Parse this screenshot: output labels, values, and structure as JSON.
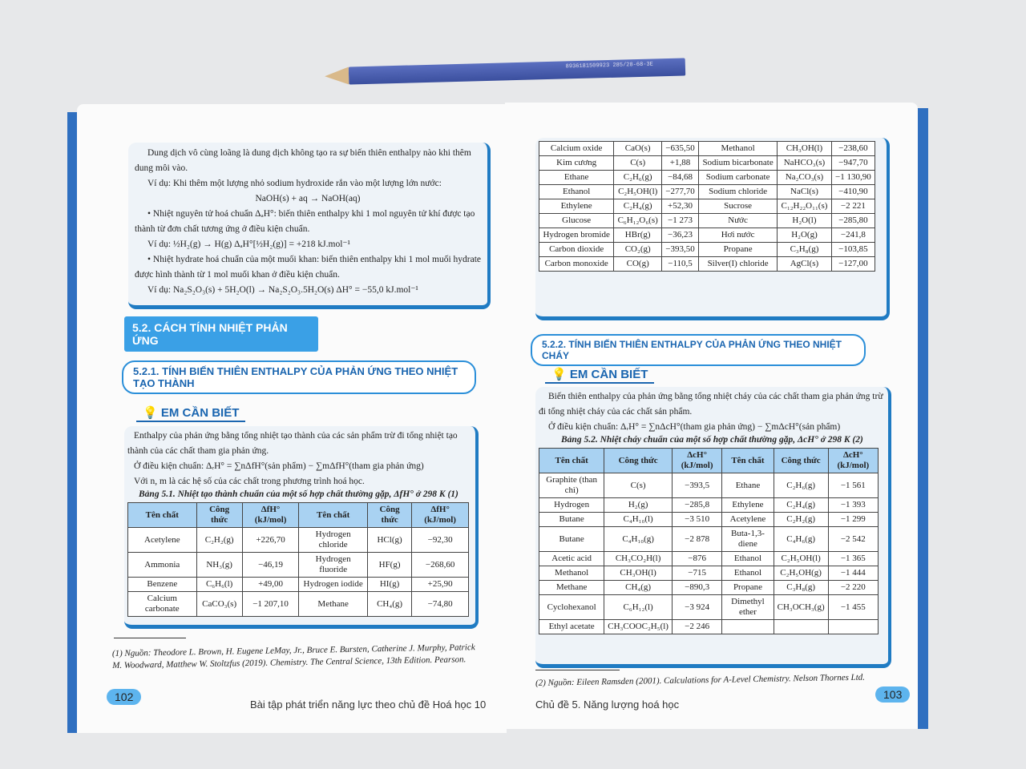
{
  "left": {
    "intro": [
      "Dung dịch vô cùng loãng là dung dịch không tạo ra sự biến thiên enthalpy nào khi thêm dung môi vào.",
      "Ví dụ: Khi thêm một lượng nhỏ sodium hydroxide rắn vào một lượng lớn nước:",
      "NaOH(s) + aq → NaOH(aq)",
      "• Nhiệt nguyên tử hoá chuẩn ΔₐH°: biến thiên enthalpy khi 1 mol nguyên tử khí được tạo thành từ đơn chất tương ứng ở điều kiện chuẩn.",
      "Ví dụ: ½H₂(g) → H(g)          ΔₐH°[½H₂(g)] = +218 kJ.mol⁻¹",
      "• Nhiệt hydrate hoá chuẩn của một muối khan: biến thiên enthalpy khi 1 mol muối hydrate được hình thành từ 1 mol muối khan ở điều kiện chuẩn.",
      "Ví dụ: Na₂S₂O₃(s) + 5H₂O(l) → Na₂S₂O₃.5H₂O(s)        ΔH° = −55,0 kJ.mol⁻¹"
    ],
    "section": "5.2. CÁCH TÍNH NHIỆT PHẢN ỨNG",
    "subsection": "5.2.1. TÍNH BIẾN THIÊN ENTHALPY CỦA PHẢN ỨNG THEO NHIỆT TẠO THÀNH",
    "em_can_biet": "EM CẦN BIẾT",
    "para": [
      "Enthalpy của phản ứng bằng tổng nhiệt tạo thành của các sản phẩm trừ đi tổng nhiệt tạo thành của các chất tham gia phản ứng.",
      "Ở điều kiện chuẩn: ΔᵣH° = ∑nΔfH°(sản phẩm) − ∑mΔfH°(tham gia phản ứng)",
      "Với n, m là các hệ số của các chất trong phương trình hoá học."
    ],
    "caption": "Bảng 5.1. Nhiệt tạo thành chuẩn của một số hợp chất thường gặp, ΔfH° ở 298 K (1)",
    "headers": [
      "Tên chất",
      "Công thức",
      "ΔfH° (kJ/mol)",
      "Tên chất",
      "Công thức",
      "ΔfH° (kJ/mol)"
    ],
    "rows": [
      [
        "Acetylene",
        "C₂H₂(g)",
        "+226,70",
        "Hydrogen chloride",
        "HCl(g)",
        "−92,30"
      ],
      [
        "Ammonia",
        "NH₃(g)",
        "−46,19",
        "Hydrogen fluoride",
        "HF(g)",
        "−268,60"
      ],
      [
        "Benzene",
        "C₆H₆(l)",
        "+49,00",
        "Hydrogen iodide",
        "HI(g)",
        "+25,90"
      ],
      [
        "Calcium carbonate",
        "CaCO₃(s)",
        "−1 207,10",
        "Methane",
        "CH₄(g)",
        "−74,80"
      ]
    ],
    "footnote": "(1) Nguồn: Theodore L. Brown, H. Eugene LeMay, Jr., Bruce E. Bursten, Catherine J. Murphy, Patrick M. Woodward, Matthew W. Stoltzfus (2019). Chemistry. The Central Science, 13th Edition. Pearson.",
    "page_number": "102",
    "footer": "Bài tập phát triển năng lực theo chủ đề Hoá học 10"
  },
  "right": {
    "top_rows": [
      [
        "Calcium oxide",
        "CaO(s)",
        "−635,50",
        "Methanol",
        "CH₃OH(l)",
        "−238,60"
      ],
      [
        "Kim cương",
        "C(s)",
        "+1,88",
        "Sodium bicarbonate",
        "NaHCO₃(s)",
        "−947,70"
      ],
      [
        "Ethane",
        "C₂H₆(g)",
        "−84,68",
        "Sodium carbonate",
        "Na₂CO₃(s)",
        "−1 130,90"
      ],
      [
        "Ethanol",
        "C₂H₅OH(l)",
        "−277,70",
        "Sodium chloride",
        "NaCl(s)",
        "−410,90"
      ],
      [
        "Ethylene",
        "C₂H₄(g)",
        "+52,30",
        "Sucrose",
        "C₁₂H₂₂O₁₁(s)",
        "−2 221"
      ],
      [
        "Glucose",
        "C₆H₁₂O₆(s)",
        "−1 273",
        "Nước",
        "H₂O(l)",
        "−285,80"
      ],
      [
        "Hydrogen bromide",
        "HBr(g)",
        "−36,23",
        "Hơi nước",
        "H₂O(g)",
        "−241,8"
      ],
      [
        "Carbon dioxide",
        "CO₂(g)",
        "−393,50",
        "Propane",
        "C₃H₈(g)",
        "−103,85"
      ],
      [
        "Carbon monoxide",
        "CO(g)",
        "−110,5",
        "Silver(I) chloride",
        "AgCl(s)",
        "−127,00"
      ]
    ],
    "subsection": "5.2.2. TÍNH BIẾN THIÊN ENTHALPY CỦA PHẢN ỨNG THEO NHIỆT CHÁY",
    "em_can_biet": "EM CẦN BIẾT",
    "para": [
      "Biến thiên enthalpy của phản ứng bằng tổng nhiệt cháy của các chất tham gia phản ứng trừ đi tổng nhiệt cháy của các chất sản phẩm.",
      "Ở điều kiện chuẩn: ΔᵣH° = ∑nΔcH°(tham gia phản ứng) − ∑mΔcH°(sản phẩm)"
    ],
    "caption": "Bảng 5.2. Nhiệt cháy chuẩn của một số hợp chất thường gặp, ΔcH° ở 298 K (2)",
    "headers": [
      "Tên chất",
      "Công thức",
      "ΔcH° (kJ/mol)",
      "Tên chất",
      "Công thức",
      "ΔcH° (kJ/mol)"
    ],
    "rows": [
      [
        "Graphite (than chì)",
        "C(s)",
        "−393,5",
        "Ethane",
        "C₂H₆(g)",
        "−1 561"
      ],
      [
        "Hydrogen",
        "H₂(g)",
        "−285,8",
        "Ethylene",
        "C₂H₄(g)",
        "−1 393"
      ],
      [
        "Butane",
        "C₄H₁₀(l)",
        "−3 510",
        "Acetylene",
        "C₂H₂(g)",
        "−1 299"
      ],
      [
        "Butane",
        "C₄H₁₀(g)",
        "−2 878",
        "Buta-1,3-diene",
        "C₄H₆(g)",
        "−2 542"
      ],
      [
        "Acetic acid",
        "CH₃CO₂H(l)",
        "−876",
        "Ethanol",
        "C₂H₅OH(l)",
        "−1 365"
      ],
      [
        "Methanol",
        "CH₃OH(l)",
        "−715",
        "Ethanol",
        "C₂H₅OH(g)",
        "−1 444"
      ],
      [
        "Methane",
        "CH₄(g)",
        "−890,3",
        "Propane",
        "C₃H₈(g)",
        "−2 220"
      ],
      [
        "Cyclohexanol",
        "C₆H₁₂(l)",
        "−3 924",
        "Dimethyl ether",
        "CH₃OCH₃(g)",
        "−1 455"
      ],
      [
        "Ethyl acetate",
        "CH₃COOC₂H₅(l)",
        "−2 246",
        "",
        "",
        ""
      ]
    ],
    "footnote": "(2) Nguồn: Eileen Ramsden (2001). Calculations for A-Level Chemistry. Nelson Thornes Ltd.",
    "page_number": "103",
    "footer": "Chủ đề 5. Năng lượng hoá học"
  },
  "pencil_barcode": "8936181509923   285/28-68-3E",
  "colors": {
    "accent": "#3aa0e6",
    "header_fill": "#a9d2f2",
    "dark_blue": "#1b66b0"
  }
}
